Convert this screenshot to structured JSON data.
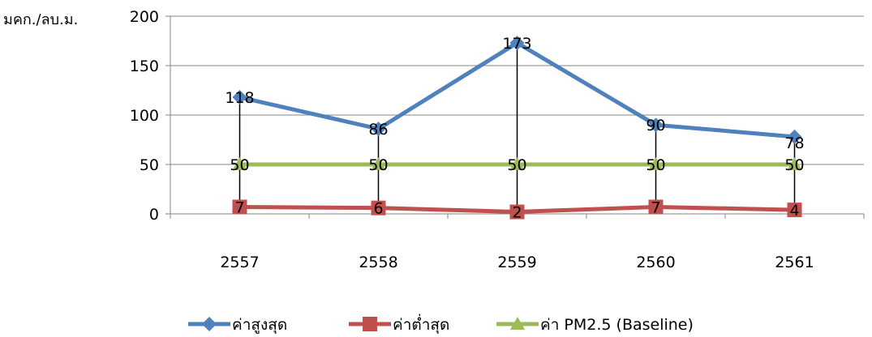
{
  "chart_data": {
    "type": "line",
    "ylabel": "มคก./ลบ.ม.",
    "ylim": [
      0,
      200
    ],
    "yticks": [
      0,
      50,
      100,
      150,
      200
    ],
    "categories": [
      "2557",
      "2558",
      "2559",
      "2560",
      "2561"
    ],
    "grid": "horizontal",
    "legend_position": "bottom",
    "series": [
      {
        "name": "ค่าสูงสุด",
        "values": [
          118,
          86,
          173,
          90,
          78
        ],
        "color": "#4F81BD",
        "marker": "diamond"
      },
      {
        "name": "ค่าต่ำสุด",
        "values": [
          7,
          6,
          2,
          7,
          4
        ],
        "color": "#C0504D",
        "marker": "square"
      },
      {
        "name": "ค่า PM2.5 (Baseline)",
        "values": [
          50,
          50,
          50,
          50,
          50
        ],
        "color": "#9BBB59",
        "marker": "triangle"
      }
    ],
    "high_low_lines": true,
    "data_labels": true
  }
}
